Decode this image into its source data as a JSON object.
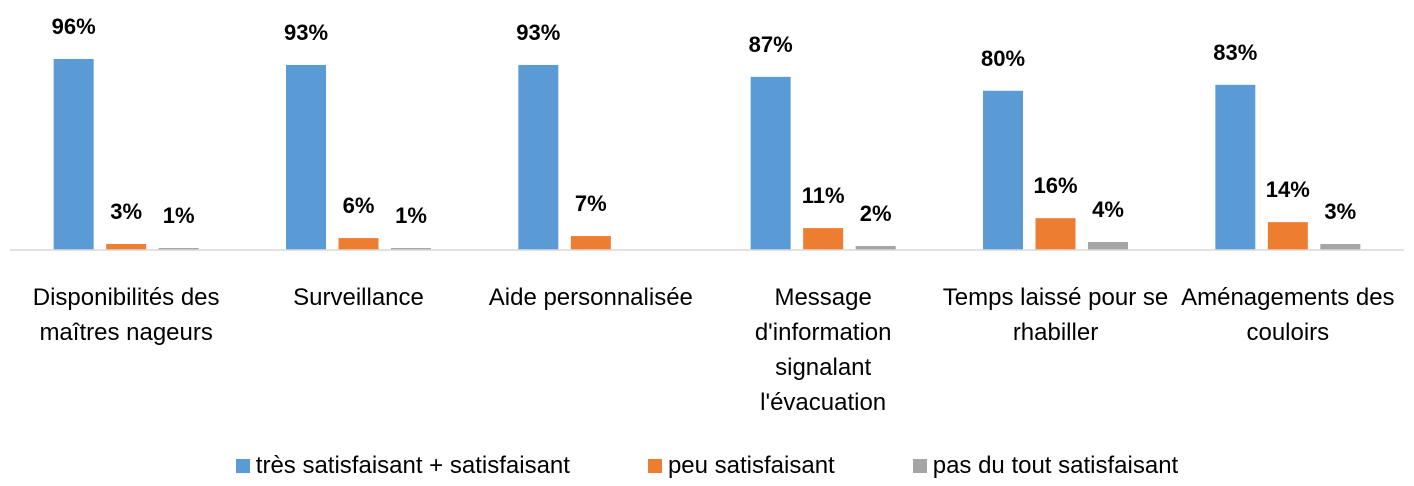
{
  "chart_data": {
    "type": "bar",
    "categories": [
      "Disponibilités des maîtres nageurs",
      "Surveillance",
      "Aide personnalisée",
      "Message d'information signalant l'évacuation",
      "Temps laissé pour se rhabiller",
      "Aménagements des couloirs"
    ],
    "series": [
      {
        "name": "très satisfaisant + satisfaisant",
        "color": "#5b9bd5",
        "values": [
          96,
          93,
          93,
          87,
          80,
          83
        ],
        "value_labels": [
          "96%",
          "93%",
          "93%",
          "87%",
          "80%",
          "83%"
        ]
      },
      {
        "name": "peu satisfaisant",
        "color": "#ed7d31",
        "values": [
          3,
          6,
          7,
          11,
          16,
          14
        ],
        "value_labels": [
          "3%",
          "6%",
          "7%",
          "11%",
          "16%",
          "14%"
        ]
      },
      {
        "name": "pas du tout satisfaisant",
        "color": "#a5a5a5",
        "values": [
          1,
          1,
          null,
          2,
          4,
          3
        ],
        "value_labels": [
          "1%",
          "1%",
          null,
          "2%",
          "4%",
          "3%"
        ]
      }
    ],
    "ylim": [
      0,
      100
    ],
    "legend": "bottom"
  }
}
